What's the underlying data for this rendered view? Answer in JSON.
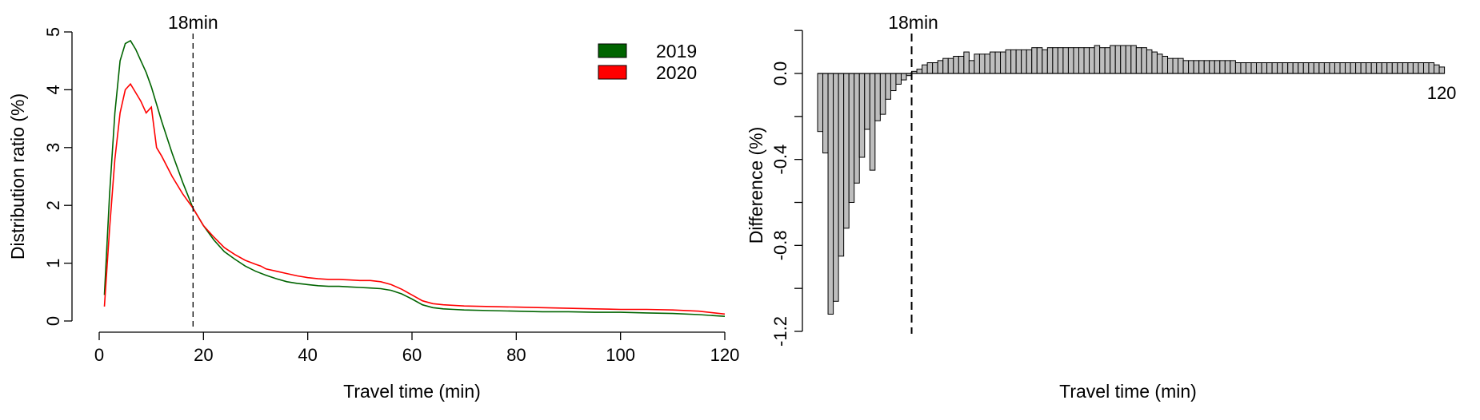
{
  "figure": {
    "colors": {
      "series_2019": "#006400",
      "series_2020": "#ff0000",
      "bars": "#bebebe",
      "bar_stroke": "#000000"
    }
  },
  "chart_data": [
    {
      "type": "line",
      "xlabel": "Travel time (min)",
      "ylabel": "Distribution ratio (%)",
      "xlim": [
        0,
        120
      ],
      "ylim": [
        0,
        5
      ],
      "xticks": [
        "0",
        "20",
        "40",
        "60",
        "80",
        "100",
        "120"
      ],
      "yticks": [
        "0",
        "1",
        "2",
        "3",
        "4",
        "5"
      ],
      "grid": false,
      "legend": {
        "placement": "top-right",
        "entries": [
          "2019",
          "2020"
        ]
      },
      "annotation": {
        "x": 18,
        "label": "18min",
        "style": "dashed-vertical-line"
      },
      "series": [
        {
          "name": "2019",
          "color": "#006400",
          "x": [
            1,
            2,
            3,
            4,
            5,
            6,
            7,
            8,
            9,
            10,
            11,
            12,
            14,
            16,
            18,
            20,
            22,
            24,
            26,
            28,
            30,
            32,
            34,
            36,
            38,
            40,
            42,
            44,
            46,
            48,
            50,
            52,
            54,
            56,
            58,
            60,
            62,
            64,
            66,
            68,
            70,
            75,
            80,
            85,
            90,
            95,
            100,
            105,
            110,
            115,
            120
          ],
          "y": [
            0.45,
            2.2,
            3.6,
            4.5,
            4.8,
            4.85,
            4.7,
            4.5,
            4.3,
            4.05,
            3.75,
            3.45,
            2.9,
            2.4,
            1.95,
            1.65,
            1.4,
            1.2,
            1.07,
            0.95,
            0.86,
            0.79,
            0.73,
            0.68,
            0.65,
            0.63,
            0.61,
            0.6,
            0.6,
            0.59,
            0.58,
            0.57,
            0.56,
            0.53,
            0.47,
            0.38,
            0.28,
            0.23,
            0.21,
            0.2,
            0.19,
            0.18,
            0.17,
            0.16,
            0.16,
            0.15,
            0.15,
            0.14,
            0.13,
            0.11,
            0.08
          ]
        },
        {
          "name": "2020",
          "color": "#ff0000",
          "x": [
            1,
            2,
            3,
            4,
            5,
            6,
            7,
            8,
            9,
            10,
            11,
            12,
            14,
            16,
            18,
            20,
            22,
            24,
            26,
            28,
            30,
            31,
            32,
            34,
            36,
            38,
            40,
            42,
            44,
            46,
            48,
            50,
            52,
            54,
            56,
            58,
            60,
            62,
            64,
            66,
            70,
            75,
            80,
            85,
            90,
            95,
            100,
            105,
            110,
            115,
            120
          ],
          "y": [
            0.25,
            1.6,
            2.8,
            3.6,
            4.0,
            4.1,
            3.95,
            3.8,
            3.6,
            3.7,
            3.0,
            2.85,
            2.5,
            2.2,
            1.95,
            1.65,
            1.45,
            1.27,
            1.15,
            1.05,
            0.98,
            0.95,
            0.9,
            0.86,
            0.82,
            0.78,
            0.75,
            0.73,
            0.72,
            0.72,
            0.71,
            0.7,
            0.7,
            0.68,
            0.63,
            0.55,
            0.45,
            0.35,
            0.3,
            0.28,
            0.26,
            0.25,
            0.24,
            0.23,
            0.22,
            0.21,
            0.2,
            0.2,
            0.19,
            0.17,
            0.12
          ]
        }
      ]
    },
    {
      "type": "bar",
      "xlabel": "Travel time (min)",
      "ylabel": "Difference (%)",
      "ylim": [
        -1.2,
        0.2
      ],
      "yticks": [
        "-1.2",
        "-0.8",
        "-0.4",
        "0.0"
      ],
      "x_end_label": "120",
      "grid": false,
      "annotation": {
        "x": 18,
        "label": "18min",
        "style": "dashed-vertical-line"
      },
      "series": [
        {
          "name": "",
          "x": [
            1,
            2,
            3,
            4,
            5,
            6,
            7,
            8,
            9,
            10,
            11,
            12,
            13,
            14,
            15,
            16,
            17,
            18,
            19,
            20,
            21,
            22,
            23,
            24,
            25,
            26,
            27,
            28,
            29,
            30,
            31,
            32,
            33,
            34,
            35,
            36,
            37,
            38,
            39,
            40,
            41,
            42,
            43,
            44,
            45,
            46,
            47,
            48,
            49,
            50,
            51,
            52,
            53,
            54,
            55,
            56,
            57,
            58,
            59,
            60,
            61,
            62,
            63,
            64,
            65,
            66,
            67,
            68,
            69,
            70,
            71,
            72,
            73,
            74,
            75,
            76,
            77,
            78,
            79,
            80,
            81,
            82,
            83,
            84,
            85,
            86,
            87,
            88,
            89,
            90,
            91,
            92,
            93,
            94,
            95,
            96,
            97,
            98,
            99,
            100,
            101,
            102,
            103,
            104,
            105,
            106,
            107,
            108,
            109,
            110,
            111,
            112,
            113,
            114,
            115,
            116,
            117,
            118,
            119,
            120
          ],
          "values": [
            -0.27,
            -0.37,
            -1.12,
            -1.06,
            -0.85,
            -0.72,
            -0.6,
            -0.51,
            -0.39,
            -0.26,
            -0.45,
            -0.22,
            -0.19,
            -0.12,
            -0.08,
            -0.05,
            -0.03,
            -0.01,
            0.01,
            0.02,
            0.04,
            0.05,
            0.05,
            0.06,
            0.07,
            0.07,
            0.08,
            0.08,
            0.1,
            0.06,
            0.09,
            0.09,
            0.09,
            0.1,
            0.1,
            0.1,
            0.11,
            0.11,
            0.11,
            0.11,
            0.11,
            0.12,
            0.12,
            0.11,
            0.12,
            0.12,
            0.12,
            0.12,
            0.12,
            0.12,
            0.12,
            0.12,
            0.12,
            0.13,
            0.12,
            0.12,
            0.13,
            0.13,
            0.13,
            0.13,
            0.13,
            0.12,
            0.12,
            0.11,
            0.1,
            0.09,
            0.08,
            0.07,
            0.07,
            0.07,
            0.06,
            0.06,
            0.06,
            0.06,
            0.06,
            0.06,
            0.06,
            0.06,
            0.06,
            0.06,
            0.05,
            0.05,
            0.05,
            0.05,
            0.05,
            0.05,
            0.05,
            0.05,
            0.05,
            0.05,
            0.05,
            0.05,
            0.05,
            0.05,
            0.05,
            0.05,
            0.05,
            0.05,
            0.05,
            0.05,
            0.05,
            0.05,
            0.05,
            0.05,
            0.05,
            0.05,
            0.05,
            0.05,
            0.05,
            0.05,
            0.05,
            0.05,
            0.05,
            0.05,
            0.05,
            0.05,
            0.05,
            0.05,
            0.04,
            0.03
          ]
        }
      ]
    }
  ]
}
